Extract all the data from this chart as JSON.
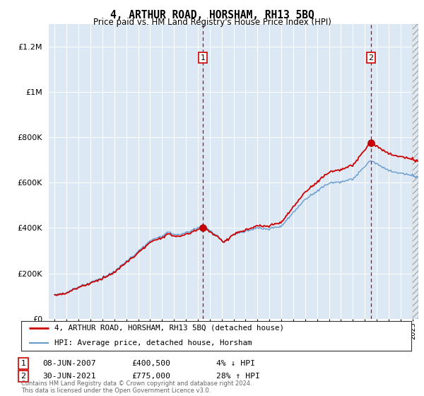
{
  "title": "4, ARTHUR ROAD, HORSHAM, RH13 5BQ",
  "subtitle": "Price paid vs. HM Land Registry's House Price Index (HPI)",
  "legend_line1": "4, ARTHUR ROAD, HORSHAM, RH13 5BQ (detached house)",
  "legend_line2": "HPI: Average price, detached house, Horsham",
  "transaction1_date": "08-JUN-2007",
  "transaction1_price": "£400,500",
  "transaction1_hpi": "4% ↓ HPI",
  "transaction2_date": "30-JUN-2021",
  "transaction2_price": "£775,000",
  "transaction2_hpi": "28% ↑ HPI",
  "footer": "Contains HM Land Registry data © Crown copyright and database right 2024.\nThis data is licensed under the Open Government Licence v3.0.",
  "plot_bg_color": "#dce9f5",
  "hpi_line_color": "#6699cc",
  "price_line_color": "#cc0000",
  "dashed_line_color": "#cc0000",
  "ylim": [
    0,
    1300000
  ],
  "yticks": [
    0,
    200000,
    400000,
    600000,
    800000,
    1000000,
    1200000
  ],
  "xstart": 1994.5,
  "xend": 2025.5,
  "transaction1_x": 2007.44,
  "transaction1_price_val": 400500,
  "transaction2_x": 2021.5,
  "transaction2_price_val": 775000
}
